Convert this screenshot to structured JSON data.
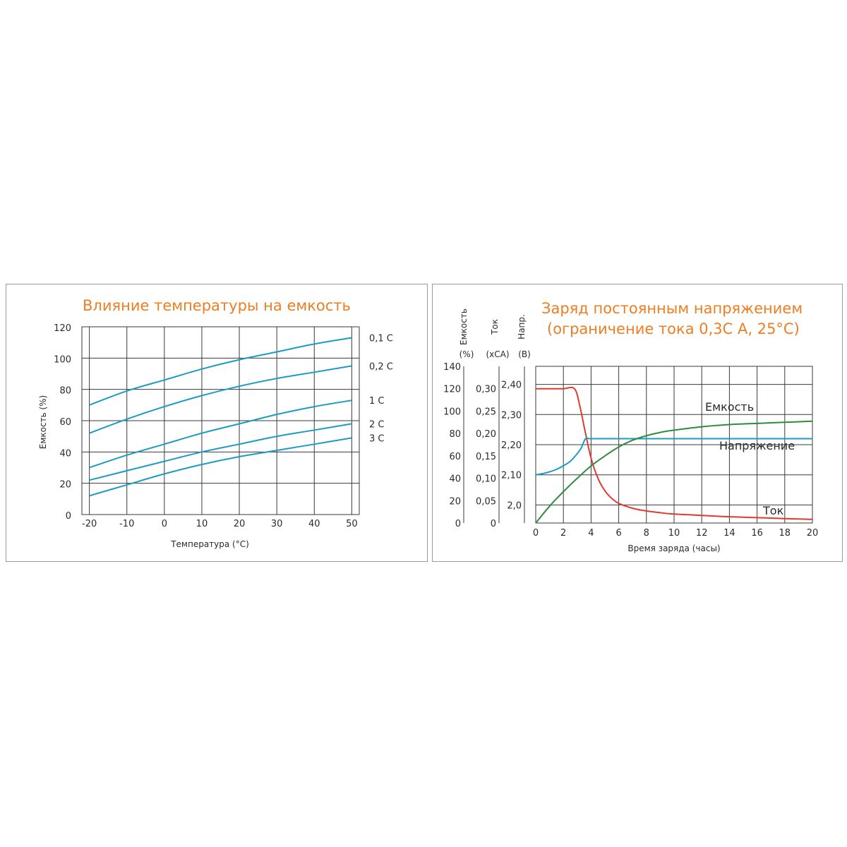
{
  "chart_data": [
    {
      "type": "line",
      "title": "Влияние температуры на емкость",
      "xlabel": "Температура (°C)",
      "ylabel": "Емкость (%)",
      "xlim": [
        -22,
        52
      ],
      "ylim": [
        0,
        120
      ],
      "x_ticks": [
        "-20",
        "-10",
        "0",
        "10",
        "20",
        "30",
        "40",
        "50"
      ],
      "y_ticks": [
        "0",
        "20",
        "40",
        "60",
        "80",
        "100",
        "120"
      ],
      "grid": true,
      "line_color": "#1b9cc0",
      "series": [
        {
          "name": "0,1 C",
          "x": [
            -20,
            -10,
            0,
            10,
            20,
            30,
            40,
            50
          ],
          "y": [
            70,
            79,
            86,
            93,
            99,
            104,
            109,
            113
          ]
        },
        {
          "name": "0,2 C",
          "x": [
            -20,
            -10,
            0,
            10,
            20,
            30,
            40,
            50
          ],
          "y": [
            52,
            61,
            69,
            76,
            82,
            87,
            91,
            95
          ]
        },
        {
          "name": "1 C",
          "x": [
            -20,
            -10,
            0,
            10,
            20,
            30,
            40,
            50
          ],
          "y": [
            30,
            38,
            45,
            52,
            58,
            64,
            69,
            73
          ]
        },
        {
          "name": "2 C",
          "x": [
            -20,
            -10,
            0,
            10,
            20,
            30,
            40,
            50
          ],
          "y": [
            22,
            28,
            34,
            40,
            45,
            50,
            54,
            58
          ]
        },
        {
          "name": "3 C",
          "x": [
            -20,
            -10,
            0,
            10,
            20,
            30,
            40,
            50
          ],
          "y": [
            12,
            19,
            26,
            32,
            37,
            41,
            45,
            49
          ]
        }
      ]
    },
    {
      "type": "line",
      "title": [
        "Заряд постоянным напряжением",
        "(ограничение тока 0,3С А, 25°С)"
      ],
      "xlabel": "Время заряда (часы)",
      "xlim": [
        0,
        20
      ],
      "x_ticks": [
        "0",
        "2",
        "4",
        "6",
        "8",
        "10",
        "12",
        "14",
        "16",
        "18",
        "20"
      ],
      "grid": true,
      "axes": [
        {
          "label": "Емкость",
          "unit": "(%)",
          "ticks": [
            "0",
            "20",
            "40",
            "60",
            "80",
            "100",
            "120",
            "140"
          ],
          "range": [
            0,
            140
          ]
        },
        {
          "label": "Ток",
          "unit": "(хСА)",
          "ticks": [
            "0",
            "0,05",
            "0,10",
            "0,15",
            "0,20",
            "0,25",
            "0,30"
          ],
          "range": [
            0,
            0.35
          ]
        },
        {
          "label": "Напр.",
          "unit": "(В)",
          "ticks": [
            "2,0",
            "2,10",
            "2,20",
            "2,30",
            "2,40"
          ],
          "range": [
            1.94,
            2.46
          ]
        }
      ],
      "series": [
        {
          "name": "Ток",
          "axis": "Ток",
          "color": "#e03a2f",
          "x": [
            0,
            1,
            2,
            2.8,
            3.2,
            3.6,
            4,
            4.5,
            5,
            5.5,
            6,
            7,
            8,
            9,
            10,
            12,
            14,
            16,
            18,
            20
          ],
          "y": [
            0.3,
            0.3,
            0.3,
            0.3,
            0.26,
            0.2,
            0.145,
            0.1,
            0.072,
            0.055,
            0.044,
            0.033,
            0.027,
            0.023,
            0.02,
            0.017,
            0.014,
            0.012,
            0.01,
            0.008
          ]
        },
        {
          "name": "Напряжение",
          "axis": "Напр.",
          "color": "#1b9cc0",
          "x": [
            0,
            0.5,
            1,
            1.5,
            2,
            2.5,
            3,
            3.3,
            3.6,
            4,
            6,
            8,
            10,
            12,
            14,
            16,
            18,
            20
          ],
          "y": [
            2.1,
            2.104,
            2.11,
            2.118,
            2.13,
            2.145,
            2.17,
            2.19,
            2.22,
            2.22,
            2.22,
            2.22,
            2.22,
            2.22,
            2.22,
            2.22,
            2.22,
            2.22
          ]
        },
        {
          "name": "Емкость",
          "axis": "Емкость",
          "color": "#2e8b3d",
          "x": [
            0,
            1,
            2,
            3,
            4,
            5,
            6,
            7,
            8,
            9,
            10,
            12,
            14,
            16,
            18,
            20
          ],
          "y": [
            0,
            15,
            28,
            40,
            51,
            60,
            68,
            74,
            78,
            81,
            83,
            86,
            88,
            89,
            90,
            91
          ]
        }
      ]
    }
  ]
}
